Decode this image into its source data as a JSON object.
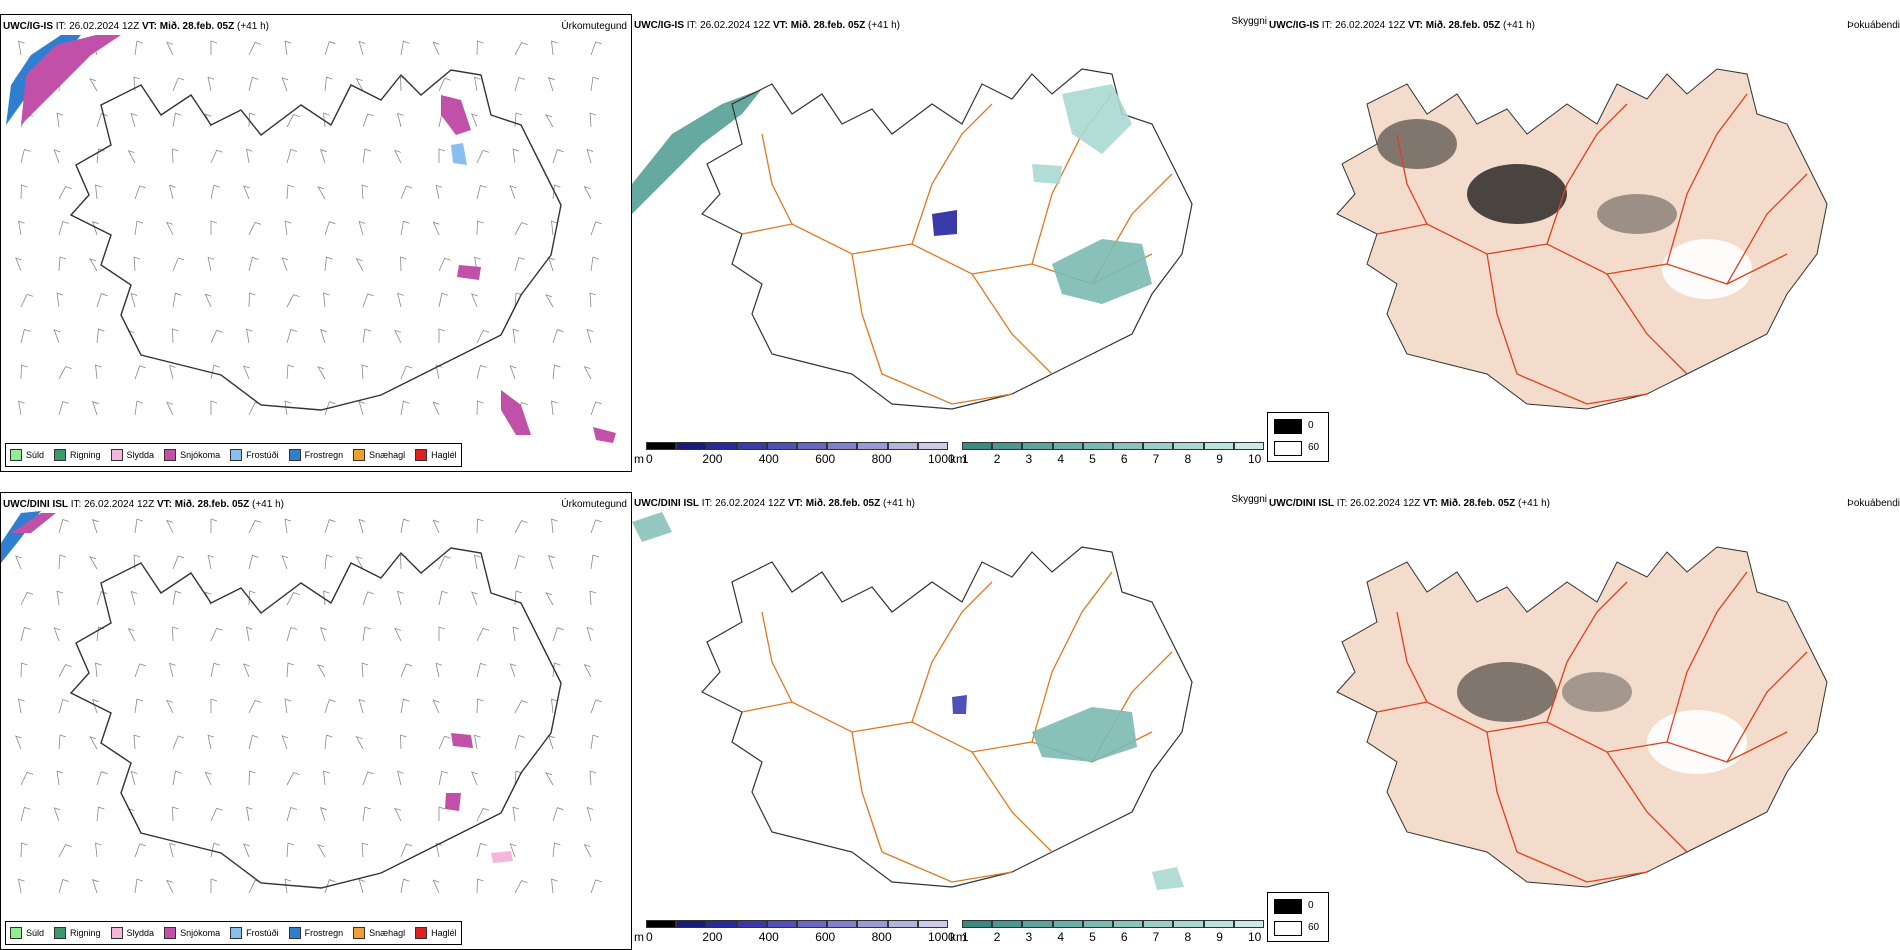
{
  "top": {
    "precip": {
      "model": "UWC/IG-IS",
      "it_label": "IT:",
      "it": "26.02.2024 12Z",
      "vt_label": "VT:",
      "vt": "Mið. 28.feb. 05Z",
      "lead": "(+41 h)",
      "name": "Úrkomutegund"
    },
    "clouds": {
      "model": "UWC/IG-IS",
      "it_label": "IT:",
      "it": "26.02.2024 12Z",
      "vt_label": "VT:",
      "vt": "Mið. 28.feb. 05Z",
      "lead": "(+41 h)",
      "name": "Skyggni"
    },
    "fog": {
      "model": "UWC/IG-IS",
      "it_label": "IT:",
      "it": "26.02.2024 12Z",
      "vt_label": "VT:",
      "vt": "Mið. 28.feb. 05Z",
      "lead": "(+41 h)",
      "name": "Þokuábendi"
    }
  },
  "bottom": {
    "precip": {
      "model": "UWC/DINI ISL",
      "it_label": "IT:",
      "it": "26.02.2024 12Z",
      "vt_label": "VT:",
      "vt": "Mið. 28.feb. 05Z",
      "lead": "(+41 h)",
      "name": "Úrkomutegund"
    },
    "clouds": {
      "model": "UWC/DINI ISL",
      "it_label": "IT:",
      "it": "26.02.2024 12Z",
      "vt_label": "VT:",
      "vt": "Mið. 28.feb. 05Z",
      "lead": "(+41 h)",
      "name": "Skyggni"
    },
    "fog": {
      "model": "UWC/DINI ISL",
      "it_label": "IT:",
      "it": "26.02.2024 12Z",
      "vt_label": "VT:",
      "vt": "Mið. 28.feb. 05Z",
      "lead": "(+41 h)",
      "name": "Þokuábendi"
    }
  },
  "precip_legend": [
    {
      "label": "Súld",
      "color": "#90ee90"
    },
    {
      "label": "Rigning",
      "color": "#3a9a6a"
    },
    {
      "label": "Slydda",
      "color": "#f4b6dc"
    },
    {
      "label": "Snjókoma",
      "color": "#c050a8"
    },
    {
      "label": "Frostúði",
      "color": "#88bff0"
    },
    {
      "label": "Frostregn",
      "color": "#2f7fd0"
    },
    {
      "label": "Snæhagl",
      "color": "#f0a030"
    },
    {
      "label": "Haglél",
      "color": "#e02020"
    }
  ],
  "cloudbase_bar": {
    "unit": "m",
    "ticks": [
      "0",
      "200",
      "400",
      "600",
      "800",
      "1000"
    ],
    "colors": [
      "#000000",
      "#1a1a7a",
      "#2a2a9a",
      "#3a3aaa",
      "#5050b8",
      "#6868c4",
      "#8080cc",
      "#9a9ad6",
      "#b4b4e0",
      "#ccccea"
    ]
  },
  "visibility_bar": {
    "unit": "km",
    "ticks": [
      "1",
      "2",
      "3",
      "4",
      "5",
      "6",
      "7",
      "8",
      "9",
      "10"
    ],
    "colors": [
      "#3a8a80",
      "#4a9890",
      "#5aa49c",
      "#6ab0a8",
      "#7abab2",
      "#8ac4bc",
      "#9acec8",
      "#aad8d2",
      "#bce2dc",
      "#cdebe6"
    ]
  },
  "fog_legend": {
    "high": "0",
    "low": "60",
    "high_color": "#000000",
    "low_color": "#ffffff"
  },
  "colors": {
    "land_fill": "#f3dccb",
    "roads": "#e07820",
    "fog_roads": "#e04020",
    "rivers": "#8aa0f0",
    "coast": "#222222"
  }
}
